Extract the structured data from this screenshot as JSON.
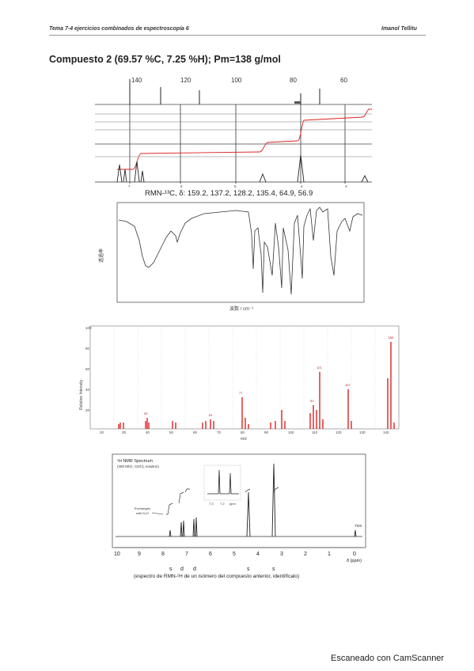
{
  "header": {
    "left": "Tema 7-4 ejercicios combinados de espectroscopía 6",
    "right": "Imanol Tellitu"
  },
  "title": "Compuesto 2 (69.57 %C, 7.25 %H); Pm=138 g/mol",
  "c13": {
    "top_ticks": [
      "140",
      "120",
      "100",
      "80",
      "60"
    ],
    "caption": "RMN-¹³C, δ: 159.2, 137.2, 128.2, 135.4, 64.9, 56.9"
  },
  "ir": {
    "ylabel": "透過率",
    "xlabel": "波数 / cm⁻¹"
  },
  "ms": {
    "ylabel": "Relative Intensity",
    "xlabel": "m/z",
    "x_ticks": [
      "20",
      "30",
      "40",
      "50",
      "60",
      "70",
      "80",
      "90",
      "100",
      "110",
      "120",
      "130",
      "140"
    ],
    "y_ticks": [
      "100",
      "80",
      "60",
      "40",
      "20"
    ],
    "peak_labels": [
      "138",
      "121",
      "77",
      "107",
      "91",
      "51",
      "39"
    ]
  },
  "h1": {
    "title": "¹H NMR Spectrum",
    "subtitle": "(400 MHz, CDCl₃ solution)",
    "exchange_label_1": "Exchanges",
    "exchange_label_2": "with D₂O",
    "tms": "TMS",
    "inset_ticks": [
      "7.3",
      "7.2",
      "ppm"
    ],
    "x_ticks": [
      "10",
      "9",
      "8",
      "7",
      "6",
      "5",
      "4",
      "3",
      "2",
      "1",
      "0"
    ],
    "x_unit": "δ (ppm)",
    "multiplicities": [
      "s",
      "d",
      "d",
      "s",
      "s"
    ],
    "caption": "(espectro de RMN-¹H de un isómero del compuesto anterior, identifícalo)"
  },
  "watermark": "Escaneado con CamScanner"
}
